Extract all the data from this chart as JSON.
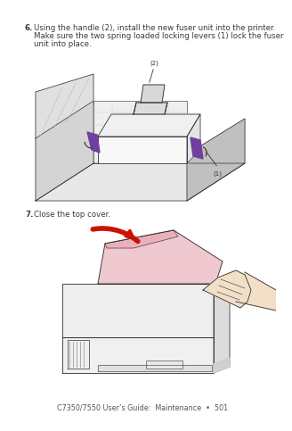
{
  "bg_color": "#ffffff",
  "text_color": "#3a3a3a",
  "footer_color": "#555555",
  "purple_color": "#7040a0",
  "red_color": "#cc1100",
  "pink_color": "#e8b0bc",
  "light_pink": "#f0c8d0",
  "gray1": "#e8e8e8",
  "gray2": "#d4d4d4",
  "gray3": "#c0c0c0",
  "gray4": "#a8a8a8",
  "line_color": "#303030",
  "step6_line1": "Using the handle (2), install the new fuser unit into the printer.",
  "step6_line2": "Make sure the two spring loaded locking levers (1) lock the fuser",
  "step6_line3": "unit into place.",
  "step7_text": "Close the top cover.",
  "footer": "C7350/7550 User’s Guide:  Maintenance  •  501",
  "text_fontsize": 6.2,
  "footer_fontsize": 5.8
}
